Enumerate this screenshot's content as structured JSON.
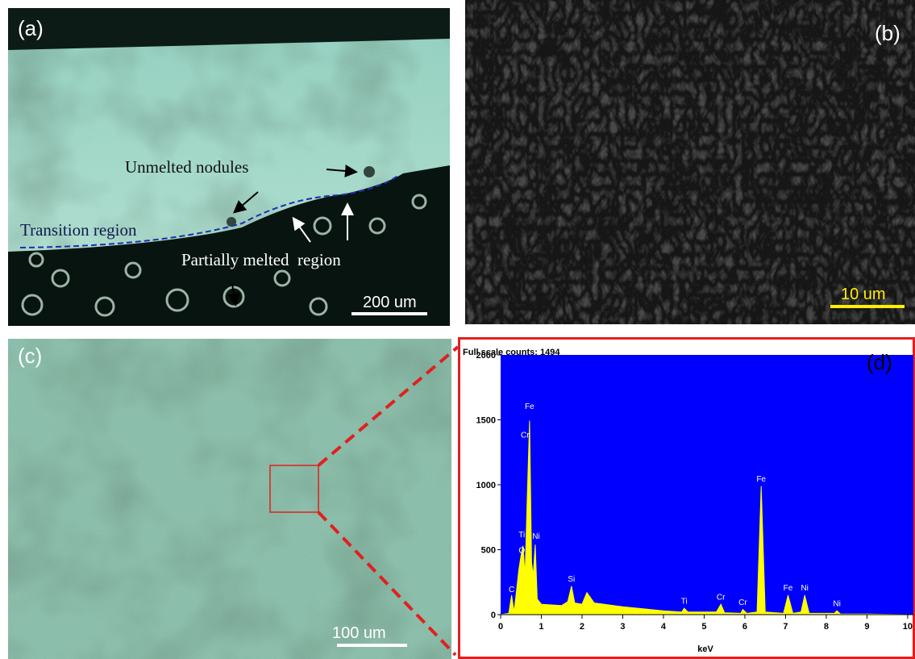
{
  "panels": [
    {
      "label": "(a)",
      "annotations": [
        "Unmelted nodules",
        "Transition region",
        "Partially melted  region"
      ],
      "scale_bar": "200 um"
    },
    {
      "label": "(b)",
      "scale_bar": "10 um"
    },
    {
      "label": "(c)",
      "scale_bar": "100 um"
    }
  ],
  "chart_data": {
    "type": "area",
    "panel_label": "(d)",
    "title": "Full scale counts: 1494",
    "x_label": "keV",
    "x": [
      0,
      0.2,
      0.27,
      0.33,
      0.45,
      0.5,
      0.55,
      0.6,
      0.65,
      0.71,
      0.76,
      0.8,
      0.85,
      0.9,
      1.0,
      1.5,
      1.65,
      1.74,
      1.82,
      2.0,
      2.12,
      2.3,
      3.0,
      4.0,
      4.45,
      4.51,
      4.6,
      5.3,
      5.41,
      5.5,
      5.9,
      5.95,
      6.05,
      6.3,
      6.4,
      6.5,
      6.95,
      7.06,
      7.18,
      7.38,
      7.47,
      7.58,
      8.2,
      8.26,
      8.35,
      9,
      10
    ],
    "values": [
      0,
      10,
      150,
      20,
      350,
      450,
      530,
      300,
      850,
      1494,
      400,
      300,
      540,
      120,
      80,
      70,
      100,
      220,
      90,
      80,
      170,
      90,
      60,
      30,
      20,
      50,
      20,
      20,
      80,
      15,
      10,
      40,
      10,
      20,
      990,
      20,
      10,
      150,
      10,
      20,
      150,
      10,
      10,
      30,
      5,
      5,
      0
    ],
    "peak_labels": [
      {
        "text": "C",
        "x": 0.27,
        "y": 150
      },
      {
        "text": "O",
        "x": 0.52,
        "y": 450
      },
      {
        "text": "Ti",
        "x": 0.52,
        "y": 570
      },
      {
        "text": "Cr",
        "x": 0.6,
        "y": 1340
      },
      {
        "text": "Fe",
        "x": 0.71,
        "y": 1560
      },
      {
        "text": "Ni",
        "x": 0.87,
        "y": 560
      },
      {
        "text": "Si",
        "x": 1.74,
        "y": 230
      },
      {
        "text": "Ti",
        "x": 4.51,
        "y": 60
      },
      {
        "text": "Cr",
        "x": 5.41,
        "y": 90
      },
      {
        "text": "Cr",
        "x": 5.95,
        "y": 50
      },
      {
        "text": "Fe",
        "x": 6.4,
        "y": 1000
      },
      {
        "text": "Fe",
        "x": 7.06,
        "y": 160
      },
      {
        "text": "Ni",
        "x": 7.47,
        "y": 160
      },
      {
        "text": "Ni",
        "x": 8.26,
        "y": 40
      }
    ],
    "color": "#ffff00",
    "background": "#0000ff",
    "xlim": [
      0,
      10.14
    ],
    "xticks": [
      0,
      1,
      2,
      3,
      4,
      5,
      6,
      7,
      8,
      9,
      10
    ],
    "ylim": [
      0,
      2000
    ],
    "yticks": [
      0,
      500,
      1000,
      1500,
      2000
    ]
  }
}
